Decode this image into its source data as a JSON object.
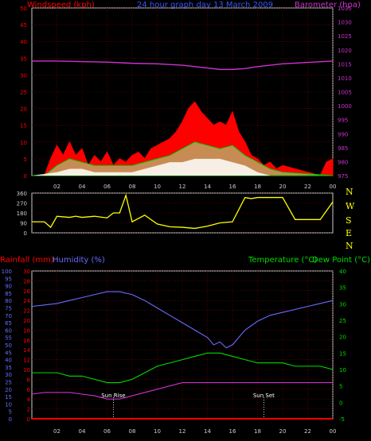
{
  "header": {
    "windspeed_label": "Windspeed (kph)",
    "title": "24 hour graph day 13 March 2009",
    "barometer_label": "Barometer (hpa)"
  },
  "direction_letters": [
    "N",
    "W",
    "S",
    "E",
    "N"
  ],
  "lower_labels": {
    "rainfall": "Rainfall (mm)",
    "humidity": "Humidity (%)",
    "temperature": "Temperature (°C)",
    "dew_point": "Dew Point (°C)"
  },
  "markers": {
    "sun_rise": "Sun Rise",
    "sun_set": "Sun Set"
  },
  "colors": {
    "windspeed": "#ff0000",
    "gust_avg": "#00cc00",
    "wind_min": "#ffffff",
    "barometer": "#cc33cc",
    "direction": "#ffff00",
    "humidity": "#6b6bff",
    "temperature": "#00dd00",
    "dew_point": "#cc33cc",
    "rainfall": "#ff0000",
    "grid": "#800000",
    "frame": "#cccccc"
  },
  "chart_data": [
    {
      "type": "area",
      "name": "wind_and_barometer",
      "x_ticks": [
        "02",
        "04",
        "06",
        "08",
        "10",
        "12",
        "14",
        "16",
        "18",
        "20",
        "22",
        "00"
      ],
      "ylim_left": [
        0,
        50
      ],
      "y_ticks_left": [
        0,
        5,
        10,
        15,
        20,
        25,
        30,
        35,
        40,
        45,
        50
      ],
      "ylim_right": [
        975,
        1035
      ],
      "y_ticks_right": [
        975,
        980,
        985,
        990,
        995,
        1000,
        1005,
        1010,
        1015,
        1020,
        1025,
        1030,
        1035
      ],
      "barometer": {
        "hours": [
          0,
          2,
          4,
          6,
          8,
          10,
          12,
          13,
          14,
          15,
          16,
          17,
          18,
          20,
          22,
          24
        ],
        "values": [
          1016,
          1016,
          1015.8,
          1015.6,
          1015.2,
          1015,
          1014.5,
          1014,
          1013.5,
          1013,
          1013,
          1013.3,
          1014,
          1015,
          1015.5,
          1016
        ]
      },
      "gust": {
        "hours": [
          0,
          1,
          1.5,
          2,
          2.5,
          3,
          3.5,
          4,
          4.5,
          5,
          5.5,
          6,
          6.5,
          7,
          7.5,
          8,
          8.5,
          9,
          9.5,
          10,
          10.5,
          11,
          11.5,
          12,
          12.5,
          13,
          13.5,
          14,
          14.5,
          15,
          15.5,
          16,
          16.5,
          17,
          17.5,
          18,
          18.5,
          19,
          19.5,
          20,
          21,
          22,
          23,
          23.5,
          24
        ],
        "values": [
          0,
          0,
          5,
          9,
          6,
          10,
          6,
          8,
          3,
          6,
          4,
          7,
          3,
          5,
          4,
          6,
          7,
          5,
          8,
          9,
          10,
          11,
          13,
          16,
          20,
          22,
          19,
          17,
          15,
          16,
          15,
          19,
          13,
          10,
          6,
          5,
          3,
          4,
          2,
          3,
          2,
          1,
          0,
          4,
          5
        ]
      },
      "gust_average": {
        "hours": [
          0,
          1,
          2,
          3,
          4,
          5,
          6,
          7,
          8,
          9,
          10,
          11,
          12,
          13,
          14,
          15,
          16,
          17,
          18,
          19,
          20,
          24
        ],
        "values": [
          0,
          0,
          3,
          5,
          4,
          3,
          3,
          3,
          3,
          4,
          5,
          6,
          8,
          10,
          9,
          8,
          9,
          6,
          4,
          2,
          1,
          0
        ]
      },
      "wind_min": {
        "hours": [
          0,
          2,
          3,
          4,
          5,
          6,
          7,
          8,
          9,
          10,
          11,
          12,
          13,
          14,
          15,
          16,
          17,
          18,
          19,
          24
        ],
        "values": [
          0,
          1,
          2,
          2,
          1,
          1,
          1,
          1,
          2,
          3,
          4,
          4,
          5,
          5,
          5,
          4,
          3,
          1,
          0,
          0
        ]
      }
    },
    {
      "type": "line",
      "name": "wind_direction",
      "ylim": [
        0,
        360
      ],
      "y_ticks": [
        0,
        90,
        180,
        270,
        360
      ],
      "hours": [
        0,
        1,
        1.5,
        2,
        3,
        3.5,
        4,
        5,
        6,
        6.5,
        7,
        7.5,
        8,
        9,
        10,
        11,
        12,
        13,
        14,
        15,
        16,
        17,
        17.5,
        18,
        19,
        20,
        21,
        22,
        23,
        24
      ],
      "values": [
        100,
        100,
        50,
        150,
        140,
        150,
        140,
        150,
        135,
        180,
        180,
        340,
        100,
        160,
        80,
        55,
        50,
        40,
        60,
        90,
        100,
        320,
        310,
        320,
        320,
        320,
        120,
        120,
        120,
        280
      ]
    },
    {
      "type": "line",
      "name": "rain_humidity_temperature",
      "x_ticks": [
        "02",
        "04",
        "06",
        "08",
        "10",
        "12",
        "14",
        "16",
        "18",
        "20",
        "22",
        "00"
      ],
      "ylim_rainfall": [
        0,
        30
      ],
      "y_ticks_rainfall": [
        0,
        2,
        4,
        6,
        8,
        10,
        12,
        14,
        16,
        18,
        20,
        22,
        24,
        26,
        28,
        30
      ],
      "ylim_humidity": [
        0,
        100
      ],
      "y_ticks_humidity": [
        0,
        5,
        10,
        15,
        20,
        25,
        30,
        35,
        40,
        45,
        50,
        55,
        60,
        65,
        70,
        75,
        80,
        85,
        90,
        95,
        100
      ],
      "ylim_temperature": [
        -5,
        40
      ],
      "y_ticks_temperature": [
        -5,
        0,
        5,
        10,
        15,
        20,
        25,
        30,
        35,
        40
      ],
      "humidity": {
        "hours": [
          0,
          1,
          2,
          3,
          4,
          5,
          6,
          7,
          8,
          9,
          10,
          11,
          12,
          13,
          14,
          14.5,
          15,
          15.5,
          16,
          17,
          18,
          19,
          20,
          21,
          22,
          23,
          24
        ],
        "values": [
          76,
          77,
          78,
          80,
          82,
          84,
          86,
          86,
          84,
          80,
          75,
          70,
          65,
          60,
          55,
          50,
          52,
          48,
          50,
          60,
          66,
          70,
          72,
          74,
          76,
          78,
          80
        ]
      },
      "temperature": {
        "hours": [
          0,
          1,
          2,
          3,
          4,
          5,
          6,
          7,
          8,
          9,
          10,
          11,
          12,
          13,
          14,
          15,
          16,
          17,
          18,
          19,
          20,
          21,
          22,
          23,
          24
        ],
        "values": [
          9,
          9,
          9,
          8,
          8,
          7,
          6,
          6,
          7,
          9,
          11,
          12,
          13,
          14,
          15,
          15,
          14,
          13,
          12,
          12,
          12,
          11,
          11,
          11,
          10
        ]
      },
      "dew_point": {
        "hours": [
          0,
          1,
          2,
          3,
          4,
          5,
          6,
          7,
          8,
          9,
          10,
          11,
          12,
          13,
          14,
          15,
          16,
          17,
          18,
          19,
          20,
          21,
          22,
          23,
          24
        ],
        "values": [
          2.5,
          3,
          3,
          3,
          2.5,
          2,
          1,
          1,
          2,
          3,
          4,
          5,
          6,
          6,
          6,
          6,
          6,
          6,
          6,
          6,
          6,
          6,
          6,
          6,
          6
        ]
      },
      "rainfall": {
        "hours": [
          0,
          24
        ],
        "values": [
          0,
          0
        ]
      },
      "sun_rise_hour": 6.5,
      "sun_set_hour": 18.5
    }
  ]
}
